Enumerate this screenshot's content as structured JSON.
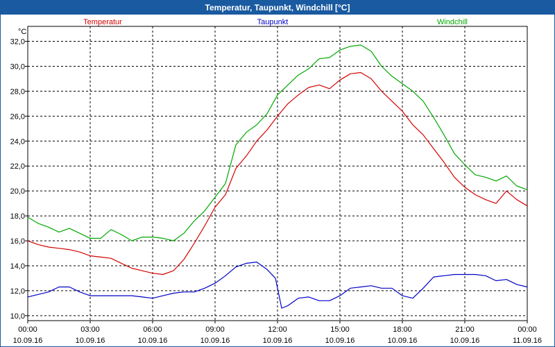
{
  "window": {
    "title": "Temperatur, Taupunkt, Windchill [°C]"
  },
  "colors": {
    "temperatur": "#d40000",
    "taupunkt": "#0000c8",
    "windchill": "#00a800",
    "titlebar": "#1a5aa0",
    "grid": "#000000"
  },
  "chart_data": {
    "type": "line",
    "title": "Temperatur, Taupunkt, Windchill [°C]",
    "ylabel": "°C",
    "xlabel": "",
    "ylim": [
      9.6,
      33.2
    ],
    "xlim": [
      0,
      24
    ],
    "grid": true,
    "y_ticks": [
      10.0,
      12.0,
      14.0,
      16.0,
      18.0,
      20.0,
      22.0,
      24.0,
      26.0,
      28.0,
      30.0,
      32.0
    ],
    "y_tick_labels": [
      "10,0",
      "12,0",
      "14,0",
      "16,0",
      "18,0",
      "20,0",
      "22,0",
      "24,0",
      "26,0",
      "28,0",
      "30,0",
      "32,0"
    ],
    "x_ticks": [
      0,
      3,
      6,
      9,
      12,
      15,
      18,
      21,
      24
    ],
    "x_tick_labels": [
      {
        "time": "00:00",
        "date": "10.09.16"
      },
      {
        "time": "03:00",
        "date": "10.09.16"
      },
      {
        "time": "06:00",
        "date": "10.09.16"
      },
      {
        "time": "09:00",
        "date": "10.09.16"
      },
      {
        "time": "12:00",
        "date": "10.09.16"
      },
      {
        "time": "15:00",
        "date": "10.09.16"
      },
      {
        "time": "18:00",
        "date": "10.09.16"
      },
      {
        "time": "21:00",
        "date": "10.09.16"
      },
      {
        "time": "00:00",
        "date": "11.09.16"
      }
    ],
    "series": [
      {
        "name": "Temperatur",
        "color": "#d40000",
        "x": [
          0,
          0.5,
          1,
          1.5,
          2,
          2.5,
          3,
          3.5,
          4,
          4.5,
          5,
          5.5,
          6,
          6.5,
          7,
          7.5,
          8,
          8.5,
          9,
          9.5,
          10,
          10.5,
          11,
          11.5,
          12,
          12.5,
          13,
          13.5,
          14,
          14.5,
          15,
          15.5,
          16,
          16.5,
          17,
          17.5,
          18,
          18.5,
          19,
          19.5,
          20,
          20.5,
          21,
          21.5,
          22,
          22.5,
          23,
          23.5,
          24
        ],
        "values": [
          16.0,
          15.7,
          15.5,
          15.4,
          15.3,
          15.1,
          14.8,
          14.7,
          14.6,
          14.2,
          13.8,
          13.6,
          13.4,
          13.3,
          13.6,
          14.5,
          15.8,
          17.2,
          18.7,
          19.7,
          21.8,
          22.8,
          24.0,
          24.9,
          26.0,
          27.0,
          27.7,
          28.3,
          28.5,
          28.2,
          28.9,
          29.4,
          29.5,
          29.0,
          28.0,
          27.2,
          26.4,
          25.3,
          24.5,
          23.4,
          22.3,
          21.1,
          20.3,
          19.7,
          19.3,
          19.0,
          20.0,
          19.3,
          18.8
        ]
      },
      {
        "name": "Taupunkt",
        "color": "#0000c8",
        "x": [
          0,
          0.5,
          1,
          1.5,
          2,
          2.5,
          3,
          3.5,
          4,
          4.5,
          5,
          5.5,
          6,
          6.5,
          7,
          7.5,
          8,
          8.5,
          9,
          9.5,
          10,
          10.5,
          11,
          11.5,
          11.9,
          12.2,
          12.5,
          13,
          13.5,
          14,
          14.5,
          15,
          15.5,
          16,
          16.5,
          17,
          17.5,
          18,
          18.5,
          19,
          19.5,
          20,
          20.5,
          21,
          21.5,
          22,
          22.5,
          23,
          23.5,
          24
        ],
        "values": [
          11.5,
          11.7,
          11.9,
          12.3,
          12.3,
          11.9,
          11.6,
          11.6,
          11.6,
          11.6,
          11.6,
          11.5,
          11.4,
          11.6,
          11.8,
          11.9,
          11.9,
          12.2,
          12.6,
          13.2,
          13.9,
          14.2,
          14.3,
          13.7,
          13.0,
          10.6,
          10.8,
          11.4,
          11.5,
          11.2,
          11.2,
          11.6,
          12.2,
          12.3,
          12.4,
          12.2,
          12.2,
          11.6,
          11.4,
          12.2,
          13.1,
          13.2,
          13.3,
          13.3,
          13.3,
          13.2,
          12.8,
          12.9,
          12.5,
          12.3
        ]
      },
      {
        "name": "Windchill",
        "color": "#00a800",
        "x": [
          0,
          0.5,
          1,
          1.5,
          2,
          2.5,
          3,
          3.5,
          4,
          4.5,
          5,
          5.5,
          6,
          6.5,
          7,
          7.5,
          8,
          8.5,
          9,
          9.5,
          10,
          10.5,
          11,
          11.5,
          12,
          12.5,
          13,
          13.5,
          14,
          14.5,
          15,
          15.5,
          16,
          16.5,
          17,
          17.5,
          18,
          18.5,
          19,
          19.5,
          20,
          20.5,
          21,
          21.5,
          22,
          22.5,
          23,
          23.5,
          24
        ],
        "values": [
          17.9,
          17.4,
          17.1,
          16.7,
          17.0,
          16.6,
          16.2,
          16.2,
          16.9,
          16.5,
          16.0,
          16.3,
          16.3,
          16.2,
          16.0,
          16.6,
          17.6,
          18.4,
          19.5,
          20.6,
          23.7,
          24.7,
          25.3,
          26.2,
          27.7,
          28.5,
          29.3,
          29.8,
          30.6,
          30.7,
          31.3,
          31.6,
          31.7,
          31.2,
          30.0,
          29.2,
          28.6,
          28.0,
          27.2,
          25.9,
          24.5,
          23.0,
          22.1,
          21.3,
          21.1,
          20.8,
          21.2,
          20.4,
          20.1
        ]
      }
    ]
  }
}
